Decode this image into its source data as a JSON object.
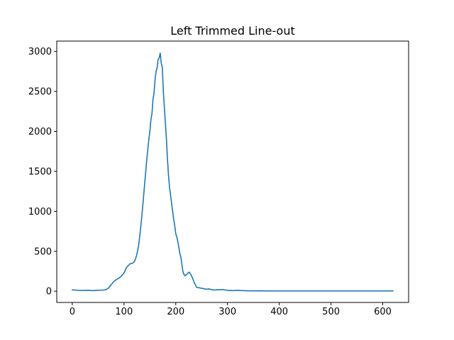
{
  "chart_data": {
    "type": "line",
    "title": "Left Trimmed Line-out",
    "xlabel": "",
    "ylabel": "",
    "xlim": [
      -30,
      650
    ],
    "ylim": [
      -140,
      3130
    ],
    "xticks": [
      0,
      100,
      200,
      300,
      400,
      500,
      600
    ],
    "yticks": [
      0,
      500,
      1000,
      1500,
      2000,
      2500,
      3000
    ],
    "grid": false,
    "colors": {
      "series": "#1f77b4"
    },
    "series": [
      {
        "x": [
          0,
          10,
          20,
          30,
          40,
          50,
          60,
          65,
          70,
          75,
          80,
          85,
          90,
          95,
          100,
          105,
          108,
          112,
          116,
          120,
          124,
          128,
          132,
          136,
          140,
          144,
          148,
          150,
          152,
          154,
          156,
          158,
          160,
          162,
          164,
          166,
          168,
          170,
          172,
          174,
          176,
          178,
          180,
          182,
          184,
          186,
          188,
          190,
          192,
          194,
          196,
          198,
          200,
          202,
          204,
          206,
          208,
          210,
          212,
          214,
          216,
          218,
          220,
          222,
          224,
          226,
          228,
          230,
          232,
          234,
          236,
          238,
          240,
          244,
          248,
          252,
          256,
          260,
          264,
          268,
          272,
          276,
          280,
          284,
          288,
          292,
          296,
          300,
          305,
          310,
          315,
          320,
          325,
          330,
          340,
          350,
          360,
          380,
          400,
          450,
          500,
          550,
          600,
          620
        ],
        "y": [
          18,
          12,
          10,
          12,
          8,
          12,
          15,
          20,
          40,
          80,
          120,
          145,
          165,
          190,
          230,
          300,
          320,
          345,
          350,
          370,
          440,
          560,
          780,
          1050,
          1350,
          1650,
          1900,
          2000,
          2150,
          2220,
          2400,
          2480,
          2650,
          2750,
          2800,
          2900,
          2920,
          2980,
          2850,
          2800,
          2500,
          2300,
          2100,
          1900,
          1650,
          1450,
          1300,
          1200,
          1100,
          1000,
          900,
          820,
          720,
          680,
          620,
          550,
          470,
          420,
          330,
          240,
          210,
          195,
          205,
          215,
          230,
          240,
          220,
          200,
          170,
          140,
          105,
          80,
          50,
          45,
          40,
          35,
          30,
          25,
          30,
          22,
          18,
          15,
          20,
          18,
          22,
          20,
          15,
          12,
          10,
          8,
          10,
          12,
          10,
          8,
          6,
          5,
          6,
          5,
          5,
          5,
          5,
          5,
          5,
          5
        ]
      }
    ]
  }
}
